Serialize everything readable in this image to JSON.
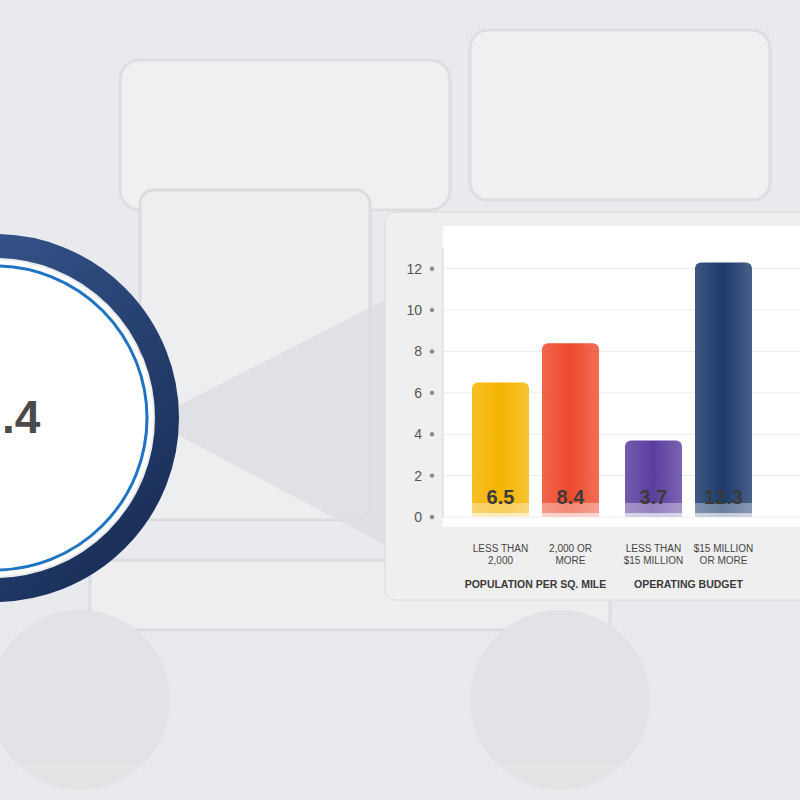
{
  "chart_data": {
    "type": "bar",
    "annotation": ".4",
    "categories": [
      "LESS THAN\n2,000",
      "2,000 OR\nMORE",
      "LESS THAN\n$15 MILLION",
      "$15 MILLION\nOR MORE"
    ],
    "group_labels": [
      "POPULATION PER SQ. MILE",
      "OPERATING BUDGET"
    ],
    "values": [
      6.5,
      8.4,
      3.7,
      12.3
    ],
    "colors": [
      "#f4b400",
      "#ee4a2c",
      "#5a3e9e",
      "#1b3a6d"
    ],
    "ylim": [
      0,
      13
    ],
    "yticks": [
      0,
      2,
      4,
      6,
      8,
      10,
      12
    ],
    "grid": true,
    "data_labels": true
  }
}
